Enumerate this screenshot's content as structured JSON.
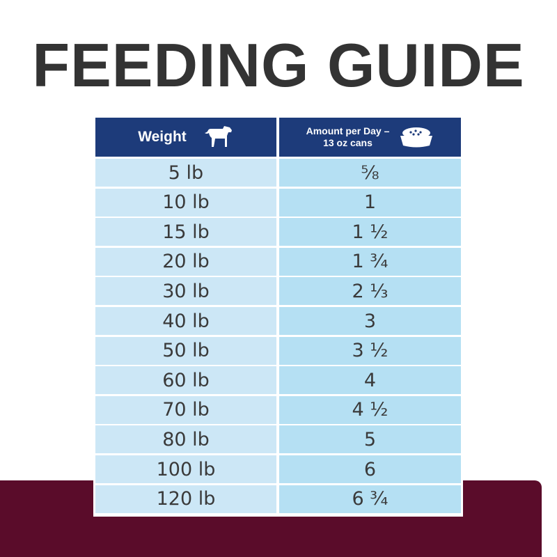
{
  "header": {
    "title": "FEEDING GUIDE"
  },
  "table": {
    "columns": [
      "Weight",
      "Amount per Day – 13 oz cans"
    ],
    "rows": [
      [
        "5 lb",
        "⅝"
      ],
      [
        "10 lb",
        "1"
      ],
      [
        "15 lb",
        "1 ½"
      ],
      [
        "20 lb",
        "1 ¾"
      ],
      [
        "30 lb",
        "2 ⅓"
      ],
      [
        "40 lb",
        "3"
      ],
      [
        "50 lb",
        "3 ½"
      ],
      [
        "60 lb",
        "4"
      ],
      [
        "70 lb",
        "4 ½"
      ],
      [
        "80 lb",
        "5"
      ],
      [
        "100 lb",
        "6"
      ],
      [
        "120 lb",
        "6 ¾"
      ]
    ]
  }
}
